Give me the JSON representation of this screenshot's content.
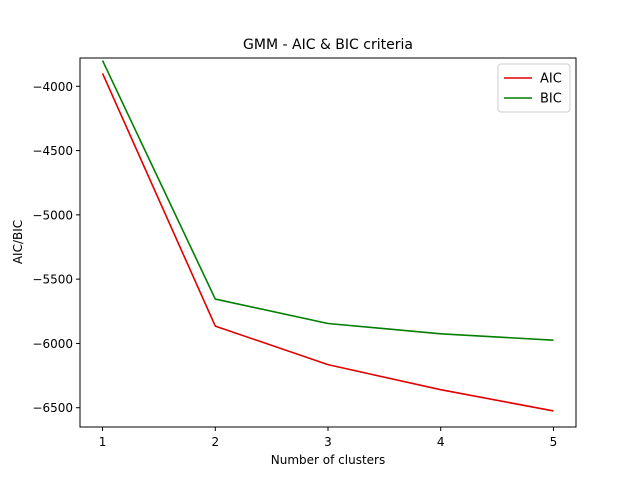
{
  "chart_data": {
    "type": "line",
    "title": "GMM - AIC & BIC criteria",
    "xlabel": "Number of clusters",
    "ylabel": "AIC/BIC",
    "x": [
      1,
      2,
      3,
      4,
      5
    ],
    "xticks": [
      "1",
      "2",
      "3",
      "4",
      "5"
    ],
    "yticks": [
      -6500,
      -6000,
      -5500,
      -5000,
      -4500,
      -4000
    ],
    "ytick_labels": [
      "−6500",
      "−6000",
      "−5500",
      "−5000",
      "−4500",
      "−4000"
    ],
    "xlim": [
      0.8,
      5.2
    ],
    "ylim": [
      -6650,
      -3780
    ],
    "grid": false,
    "legend_position": "top-right",
    "series": [
      {
        "name": "AIC",
        "color": "#e00000",
        "values": [
          -3900,
          -5865,
          -6165,
          -6360,
          -6525
        ]
      },
      {
        "name": "BIC",
        "color": "#007f00",
        "values": [
          -3800,
          -5655,
          -5845,
          -5925,
          -5975
        ]
      }
    ]
  }
}
